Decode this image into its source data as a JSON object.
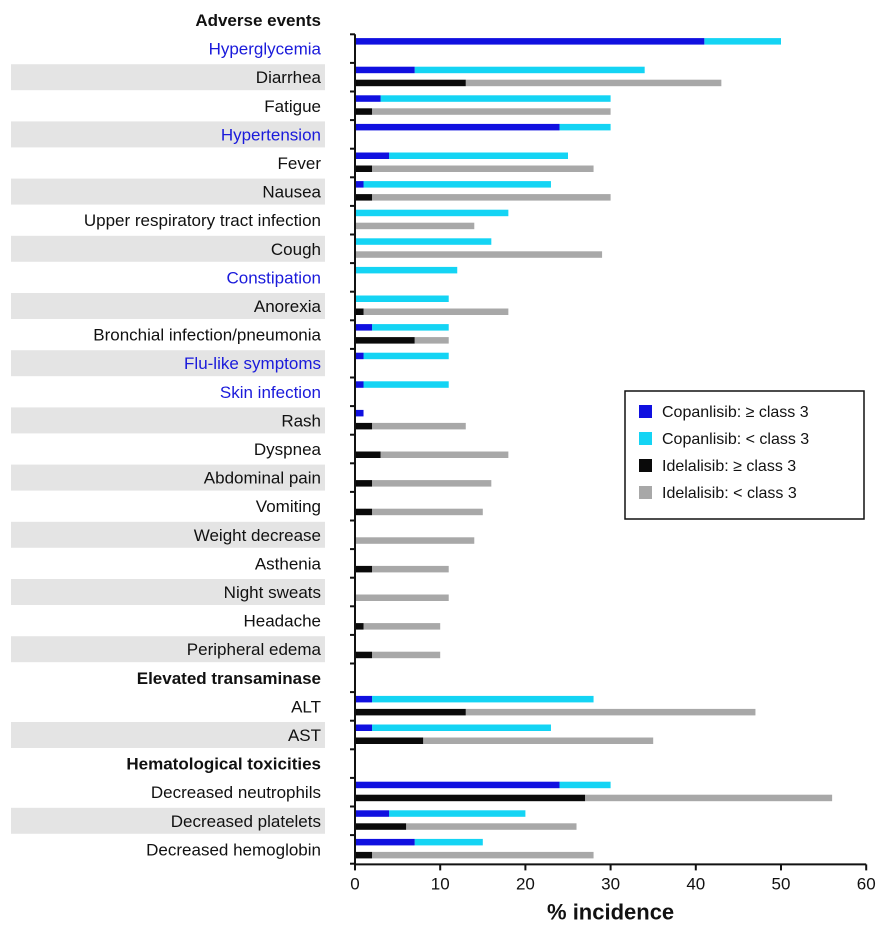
{
  "chart_data": {
    "type": "bar",
    "orientation": "horizontal",
    "stacked": true,
    "xlabel": "% incidence",
    "xlim": [
      0,
      60
    ],
    "xticks": [
      0,
      10,
      20,
      30,
      40,
      50,
      60
    ],
    "legend_position": "right",
    "series": [
      {
        "name": "Copanlisib: ≥ class 3",
        "color": "#1010e0"
      },
      {
        "name": "Copanlisib: < class 3",
        "color": "#14d4f4"
      },
      {
        "name": "Idelalisib: ≥ class 3",
        "color": "#0a0a0a"
      },
      {
        "name": "Idelalisib: < class 3",
        "color": "#a8a8a8"
      }
    ],
    "rows": [
      {
        "label": "Adverse events",
        "kind": "header"
      },
      {
        "label": "Hyperglycemia",
        "kind": "blue",
        "shaded": false,
        "cop": [
          41,
          50
        ],
        "ide": [
          0,
          0
        ]
      },
      {
        "label": "Diarrhea",
        "kind": "normal",
        "shaded": true,
        "cop": [
          7,
          34
        ],
        "ide": [
          13,
          43
        ]
      },
      {
        "label": "Fatigue",
        "kind": "normal",
        "shaded": false,
        "cop": [
          3,
          30
        ],
        "ide": [
          2,
          30
        ]
      },
      {
        "label": "Hypertension",
        "kind": "blue",
        "shaded": true,
        "cop": [
          24,
          30
        ],
        "ide": [
          0,
          0
        ]
      },
      {
        "label": "Fever",
        "kind": "normal",
        "shaded": false,
        "cop": [
          4,
          25
        ],
        "ide": [
          2,
          28
        ]
      },
      {
        "label": "Nausea",
        "kind": "normal",
        "shaded": true,
        "cop": [
          1,
          23
        ],
        "ide": [
          2,
          30
        ]
      },
      {
        "label": "Upper respiratory tract infection",
        "kind": "normal",
        "shaded": false,
        "cop": [
          0,
          18
        ],
        "ide": [
          0,
          14
        ]
      },
      {
        "label": "Cough",
        "kind": "normal",
        "shaded": true,
        "cop": [
          0,
          16
        ],
        "ide": [
          0,
          29
        ]
      },
      {
        "label": "Constipation",
        "kind": "blue",
        "shaded": false,
        "cop": [
          0,
          12
        ],
        "ide": [
          0,
          0
        ]
      },
      {
        "label": "Anorexia",
        "kind": "normal",
        "shaded": true,
        "cop": [
          0,
          11
        ],
        "ide": [
          1,
          18
        ]
      },
      {
        "label": "Bronchial infection/pneumonia",
        "kind": "normal",
        "shaded": false,
        "cop": [
          2,
          11
        ],
        "ide": [
          7,
          11
        ]
      },
      {
        "label": "Flu-like symptoms",
        "kind": "blue",
        "shaded": true,
        "cop": [
          1,
          11
        ],
        "ide": [
          0,
          0
        ]
      },
      {
        "label": "Skin infection",
        "kind": "blue",
        "shaded": false,
        "cop": [
          1,
          11
        ],
        "ide": [
          0,
          0
        ]
      },
      {
        "label": "Rash",
        "kind": "normal",
        "shaded": true,
        "cop": [
          1,
          1
        ],
        "ide": [
          2,
          13
        ]
      },
      {
        "label": "Dyspnea",
        "kind": "normal",
        "shaded": false,
        "cop": [
          0,
          0
        ],
        "ide": [
          3,
          18
        ]
      },
      {
        "label": "Abdominal pain",
        "kind": "normal",
        "shaded": true,
        "cop": [
          0,
          0
        ],
        "ide": [
          2,
          16
        ]
      },
      {
        "label": "Vomiting",
        "kind": "normal",
        "shaded": false,
        "cop": [
          0,
          0
        ],
        "ide": [
          2,
          15
        ]
      },
      {
        "label": "Weight decrease",
        "kind": "normal",
        "shaded": true,
        "cop": [
          0,
          0
        ],
        "ide": [
          0,
          14
        ]
      },
      {
        "label": "Asthenia",
        "kind": "normal",
        "shaded": false,
        "cop": [
          0,
          0
        ],
        "ide": [
          2,
          11
        ]
      },
      {
        "label": "Night sweats",
        "kind": "normal",
        "shaded": true,
        "cop": [
          0,
          0
        ],
        "ide": [
          0,
          11
        ]
      },
      {
        "label": "Headache",
        "kind": "normal",
        "shaded": false,
        "cop": [
          0,
          0
        ],
        "ide": [
          1,
          10
        ]
      },
      {
        "label": "Peripheral edema",
        "kind": "normal",
        "shaded": true,
        "cop": [
          0,
          0
        ],
        "ide": [
          2,
          10
        ]
      },
      {
        "label": "Elevated transaminase",
        "kind": "header"
      },
      {
        "label": "ALT",
        "kind": "normal",
        "shaded": false,
        "cop": [
          2,
          28
        ],
        "ide": [
          13,
          47
        ]
      },
      {
        "label": "AST",
        "kind": "normal",
        "shaded": true,
        "cop": [
          2,
          23
        ],
        "ide": [
          8,
          35
        ]
      },
      {
        "label": "Hematological toxicities",
        "kind": "header"
      },
      {
        "label": "Decreased neutrophils",
        "kind": "normal",
        "shaded": false,
        "cop": [
          24,
          30
        ],
        "ide": [
          27,
          56
        ]
      },
      {
        "label": "Decreased platelets",
        "kind": "normal",
        "shaded": true,
        "cop": [
          4,
          20
        ],
        "ide": [
          6,
          26
        ]
      },
      {
        "label": "Decreased hemoglobin",
        "kind": "normal",
        "shaded": false,
        "cop": [
          7,
          15
        ],
        "ide": [
          2,
          28
        ]
      }
    ]
  }
}
